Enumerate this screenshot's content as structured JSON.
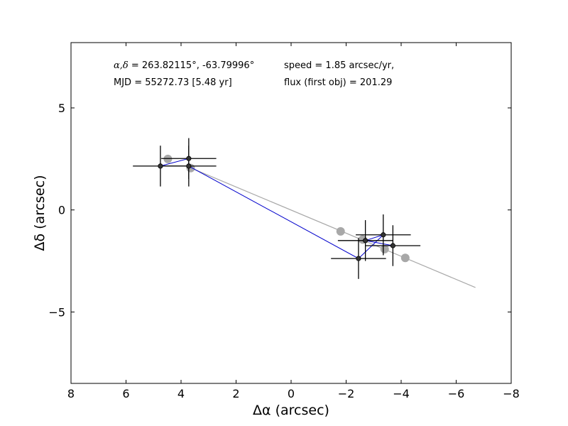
{
  "chart_data": {
    "type": "scatter",
    "xlabel": "Δα (arcsec)",
    "ylabel": "Δδ (arcsec)",
    "xlim": [
      8,
      -8
    ],
    "ylim": [
      -8.5,
      8.2
    ],
    "xticks": [
      8,
      6,
      4,
      2,
      0,
      -2,
      -4,
      -6,
      -8
    ],
    "xtick_labels": [
      "8",
      "6",
      "4",
      "2",
      "0",
      "−2",
      "−4",
      "−6",
      "−8"
    ],
    "yticks": [
      5,
      0,
      -5
    ],
    "ytick_labels": [
      "5",
      "0",
      "−5"
    ],
    "annotations": {
      "coords_symbol": "α,δ",
      "coords_text": " = 263.82115°, -63.79996°",
      "mjd": "MJD = 55272.73 [5.48 yr]",
      "speed": "speed = 1.85 arcsec/yr,",
      "flux": "flux (first obj) = 201.29"
    },
    "colors": {
      "observed": "#333333",
      "observed_edge": "#000000",
      "model": "#a8a8a8",
      "path": "#0000cc",
      "errorbar": "#000000"
    },
    "series": [
      {
        "name": "observed",
        "points": [
          {
            "x": 4.75,
            "y": 2.15,
            "xerr": 1.0,
            "yerr": 1.0
          },
          {
            "x": 3.72,
            "y": 2.52,
            "xerr": 1.0,
            "yerr": 1.0
          },
          {
            "x": 3.72,
            "y": 2.15,
            "xerr": 1.0,
            "yerr": 1.0
          },
          {
            "x": -2.45,
            "y": -2.38,
            "xerr": 1.0,
            "yerr": 1.0
          },
          {
            "x": -3.35,
            "y": -1.22,
            "xerr": 1.0,
            "yerr": 1.0
          },
          {
            "x": -2.7,
            "y": -1.5,
            "xerr": 1.0,
            "yerr": 1.0
          },
          {
            "x": -3.7,
            "y": -1.75,
            "xerr": 1.0,
            "yerr": 1.0
          }
        ]
      },
      {
        "name": "model",
        "points": [
          {
            "x": 4.48,
            "y": 2.5
          },
          {
            "x": 3.65,
            "y": 2.05
          },
          {
            "x": -1.8,
            "y": -1.05
          },
          {
            "x": -2.6,
            "y": -1.45
          },
          {
            "x": -3.4,
            "y": -1.92
          },
          {
            "x": -4.15,
            "y": -2.35
          }
        ]
      },
      {
        "name": "motion-track",
        "points": [
          {
            "x": 3.72,
            "y": 2.1
          },
          {
            "x": -6.7,
            "y": -3.8
          }
        ]
      },
      {
        "name": "path",
        "points": [
          {
            "x": 4.75,
            "y": 2.15
          },
          {
            "x": 3.72,
            "y": 2.52
          },
          {
            "x": 3.72,
            "y": 2.15
          },
          {
            "x": -2.45,
            "y": -2.38
          },
          {
            "x": -3.35,
            "y": -1.22
          },
          {
            "x": -2.7,
            "y": -1.5
          },
          {
            "x": -3.7,
            "y": -1.75
          }
        ]
      }
    ]
  }
}
